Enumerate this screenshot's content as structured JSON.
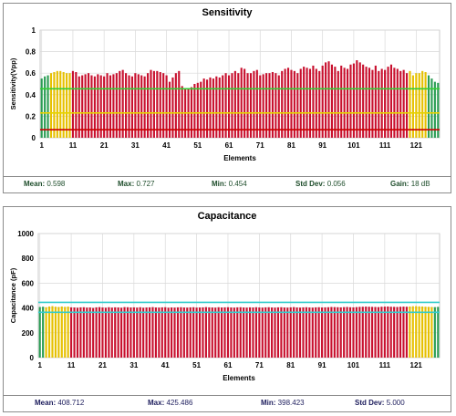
{
  "colors": {
    "red_bar": "#c8102e",
    "yellow_bar": "#e6c000",
    "green_bar": "#2a9d54",
    "grid": "#d9d9d9",
    "green_line": "#33cc33",
    "yellow_line": "#e6d200",
    "red_line": "#cc0000",
    "cyan_line": "#33cccc"
  },
  "chart_data": [
    {
      "type": "bar",
      "title": "Sensitivity",
      "xlabel": "Elements",
      "ylabel": "Sensitivity(Vpp)",
      "ylim": [
        0,
        1
      ],
      "yticks": [
        "0",
        "0.2",
        "0.4",
        "0.6",
        "0.8",
        "1"
      ],
      "xticks": [
        "1",
        "11",
        "21",
        "31",
        "41",
        "51",
        "61",
        "71",
        "81",
        "91",
        "101",
        "111",
        "121"
      ],
      "grid": true,
      "x_start": 1,
      "values": [
        0.55,
        0.57,
        0.58,
        0.6,
        0.61,
        0.62,
        0.62,
        0.61,
        0.6,
        0.6,
        0.62,
        0.61,
        0.57,
        0.58,
        0.59,
        0.6,
        0.58,
        0.57,
        0.59,
        0.58,
        0.57,
        0.6,
        0.58,
        0.59,
        0.6,
        0.62,
        0.63,
        0.6,
        0.58,
        0.57,
        0.6,
        0.59,
        0.58,
        0.57,
        0.6,
        0.63,
        0.62,
        0.62,
        0.61,
        0.6,
        0.58,
        0.52,
        0.56,
        0.6,
        0.62,
        0.48,
        0.46,
        0.45,
        0.47,
        0.5,
        0.51,
        0.52,
        0.55,
        0.54,
        0.56,
        0.55,
        0.57,
        0.56,
        0.58,
        0.6,
        0.58,
        0.6,
        0.62,
        0.6,
        0.65,
        0.64,
        0.6,
        0.6,
        0.62,
        0.63,
        0.58,
        0.59,
        0.6,
        0.6,
        0.61,
        0.6,
        0.58,
        0.62,
        0.64,
        0.65,
        0.63,
        0.62,
        0.6,
        0.64,
        0.66,
        0.65,
        0.64,
        0.67,
        0.64,
        0.62,
        0.67,
        0.7,
        0.71,
        0.68,
        0.66,
        0.62,
        0.67,
        0.65,
        0.64,
        0.68,
        0.69,
        0.72,
        0.7,
        0.68,
        0.66,
        0.65,
        0.63,
        0.67,
        0.62,
        0.64,
        0.63,
        0.66,
        0.68,
        0.65,
        0.64,
        0.62,
        0.63,
        0.6,
        0.62,
        0.58,
        0.6,
        0.6,
        0.62,
        0.61,
        0.58,
        0.55,
        0.52,
        0.51
      ],
      "colors_by_element": {
        "green": [
          [
            1,
            3
          ],
          [
            125,
            128
          ]
        ],
        "yellow": [
          [
            4,
            10
          ],
          [
            119,
            124
          ]
        ],
        "red": [
          [
            11,
            118
          ]
        ]
      },
      "reference_lines": [
        {
          "value": 0.455,
          "color": "green_line"
        },
        {
          "value": 0.23,
          "color": "yellow_line"
        },
        {
          "value": 0.075,
          "color": "red_line"
        }
      ],
      "stats": [
        {
          "label": "Mean:",
          "value": "0.598"
        },
        {
          "label": "Max:",
          "value": "0.727"
        },
        {
          "label": "Min:",
          "value": "0.454"
        },
        {
          "label": "Std Dev:",
          "value": "0.056"
        },
        {
          "label": "Gain:",
          "value": "18 dB"
        }
      ]
    },
    {
      "type": "bar",
      "title": "Capacitance",
      "xlabel": "Elements",
      "ylabel": "Capacitance (pF)",
      "ylim": [
        0,
        1000
      ],
      "yticks": [
        "0",
        "200",
        "400",
        "600",
        "800",
        "1000"
      ],
      "xticks": [
        "1",
        "11",
        "21",
        "31",
        "41",
        "51",
        "61",
        "71",
        "81",
        "91",
        "101",
        "111",
        "121"
      ],
      "grid": true,
      "x_start": 1,
      "values": [
        408,
        410,
        406,
        412,
        415,
        410,
        408,
        412,
        409,
        411,
        405,
        404,
        402,
        405,
        406,
        403,
        404,
        400,
        405,
        407,
        404,
        402,
        406,
        403,
        405,
        404,
        402,
        407,
        406,
        404,
        405,
        403,
        406,
        402,
        404,
        405,
        407,
        404,
        403,
        405,
        406,
        402,
        404,
        403,
        405,
        406,
        404,
        403,
        405,
        406,
        403,
        404,
        405,
        407,
        405,
        404,
        403,
        406,
        404,
        405,
        406,
        404,
        403,
        405,
        406,
        404,
        403,
        405,
        404,
        406,
        404,
        403,
        405,
        406,
        404,
        403,
        405,
        406,
        404,
        403,
        405,
        407,
        404,
        403,
        405,
        406,
        404,
        403,
        405,
        406,
        404,
        405,
        406,
        408,
        407,
        406,
        405,
        407,
        408,
        406,
        405,
        407,
        409,
        410,
        411,
        410,
        409,
        408,
        407,
        410,
        411,
        412,
        410,
        409,
        408,
        410,
        411,
        410,
        412,
        414,
        415,
        413,
        412,
        410,
        409,
        408,
        407,
        409
      ],
      "colors_by_element": {
        "green": [
          [
            1,
            2
          ],
          [
            127,
            128
          ]
        ],
        "yellow": [
          [
            3,
            10
          ],
          [
            119,
            126
          ]
        ],
        "red": [
          [
            11,
            118
          ]
        ]
      },
      "reference_lines": [
        {
          "value": 445,
          "color": "cyan_line"
        },
        {
          "value": 365,
          "color": "cyan_line"
        }
      ],
      "stats": [
        {
          "label": "Mean:",
          "value": "408.712"
        },
        {
          "label": "Max:",
          "value": "425.486"
        },
        {
          "label": "Min:",
          "value": "398.423"
        },
        {
          "label": "Std Dev:",
          "value": "5.000"
        }
      ]
    }
  ]
}
